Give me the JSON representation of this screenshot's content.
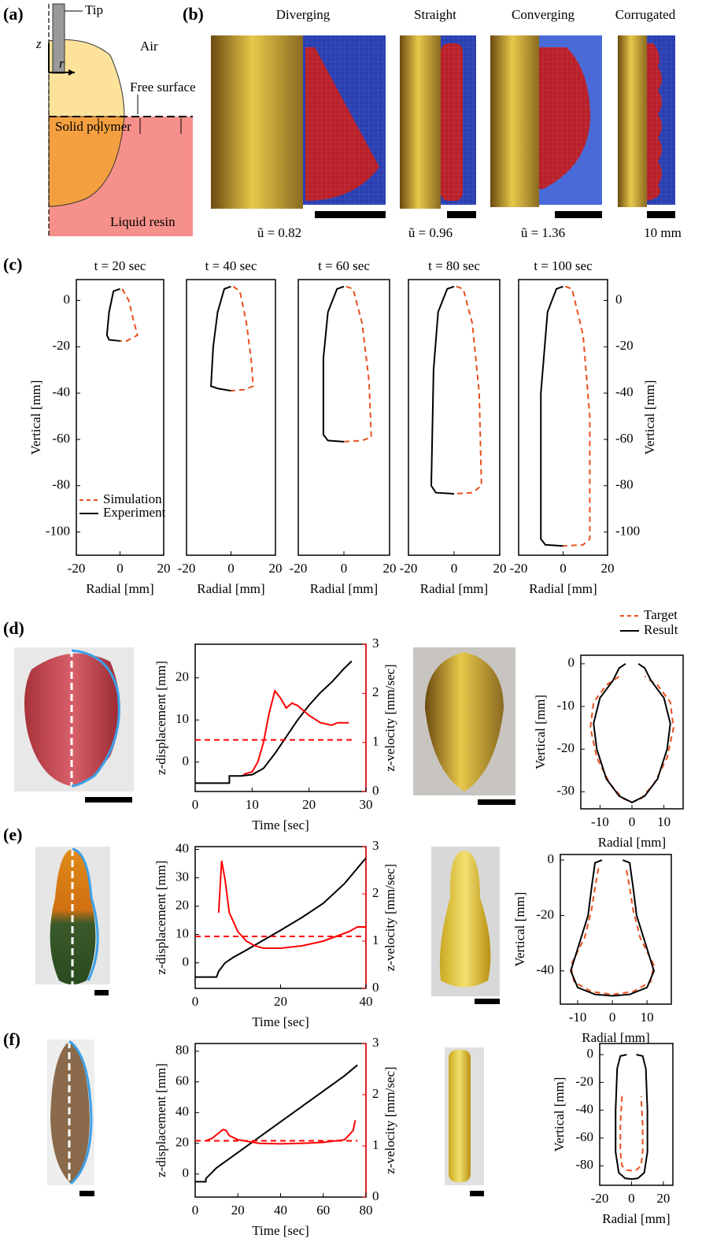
{
  "panel_labels": [
    "(a)",
    "(b)",
    "(c)",
    "(d)",
    "(e)",
    "(f)"
  ],
  "panel_a": {
    "tip": "Tip",
    "air": "Air",
    "z_axis": "z",
    "r_axis": "r",
    "free_surface": "Free surface",
    "solid": "Solid polymer",
    "liquid": "Liquid resin"
  },
  "panel_b": {
    "shapes": [
      {
        "title": "Diverging",
        "caption": "ũ = 0.82"
      },
      {
        "title": "Straight",
        "caption": "ũ = 0.96"
      },
      {
        "title": "Converging",
        "caption": "ũ = 1.36"
      },
      {
        "title": "Corrugated",
        "caption": "10 mm"
      }
    ]
  },
  "chart_data": [
    {
      "type": "line",
      "title": "t = 20 sec",
      "xlabel": "Radial [mm]",
      "ylabel": "Vertical [mm]",
      "xlim": [
        -20,
        20
      ],
      "ylim": [
        -110,
        9
      ],
      "xticks": [
        -20,
        0,
        20
      ],
      "yticks": [
        0,
        -20,
        -40,
        -60,
        -80,
        -100
      ],
      "legend": "lower left",
      "series": [
        {
          "name": "Simulation",
          "color": "#e8501e",
          "dash": true,
          "x": [
            1,
            4,
            6,
            8,
            3,
            0
          ],
          "values": [
            5,
            0,
            -8,
            -15,
            -17.5,
            -17.5
          ]
        },
        {
          "name": "Experiment",
          "color": "#000000",
          "dash": false,
          "x": [
            0,
            -3,
            -5,
            -6,
            -5,
            0
          ],
          "values": [
            5,
            4,
            -5,
            -15,
            -17,
            -17.5
          ]
        }
      ]
    },
    {
      "type": "line",
      "title": "t = 40 sec",
      "xlabel": "Radial [mm]",
      "xlim": [
        -20,
        20
      ],
      "ylim": [
        -110,
        9
      ],
      "xticks": [
        -20,
        0,
        20
      ],
      "series": [
        {
          "color": "#e8501e",
          "dash": true,
          "x": [
            1,
            4,
            7,
            9,
            10,
            6,
            0
          ],
          "values": [
            6,
            4,
            -10,
            -25,
            -37,
            -38.5,
            -39
          ]
        },
        {
          "color": "#000000",
          "dash": false,
          "x": [
            0,
            -3,
            -6,
            -8,
            -9,
            -6,
            0
          ],
          "values": [
            6,
            5,
            -5,
            -20,
            -37,
            -38,
            -39
          ]
        }
      ]
    },
    {
      "type": "line",
      "title": "t = 60 sec",
      "xlabel": "Radial [mm]",
      "xlim": [
        -20,
        20
      ],
      "ylim": [
        -110,
        9
      ],
      "xticks": [
        -20,
        0,
        20
      ],
      "series": [
        {
          "color": "#e8501e",
          "dash": true,
          "x": [
            1,
            4,
            8,
            11,
            12,
            8,
            0
          ],
          "values": [
            6,
            5,
            -10,
            -35,
            -59,
            -60.5,
            -61
          ]
        },
        {
          "color": "#000000",
          "dash": false,
          "x": [
            0,
            -3,
            -7,
            -9,
            -9,
            -7,
            0
          ],
          "values": [
            6,
            5,
            -5,
            -25,
            -58,
            -60.5,
            -61
          ]
        }
      ]
    },
    {
      "type": "line",
      "title": "t = 80 sec",
      "xlabel": "Radial [mm]",
      "xlim": [
        -20,
        20
      ],
      "ylim": [
        -110,
        9
      ],
      "xticks": [
        -20,
        0,
        20
      ],
      "series": [
        {
          "color": "#e8501e",
          "dash": true,
          "x": [
            1,
            4,
            8,
            11,
            12,
            8,
            0
          ],
          "values": [
            6,
            5,
            -10,
            -40,
            -80,
            -83,
            -83.5
          ]
        },
        {
          "color": "#000000",
          "dash": false,
          "x": [
            0,
            -3,
            -7,
            -9,
            -10,
            -8,
            0
          ],
          "values": [
            6,
            5,
            -5,
            -30,
            -80,
            -83,
            -83.5
          ]
        }
      ]
    },
    {
      "type": "line",
      "title": "t = 100 sec",
      "xlabel": "Radial [mm]",
      "ylabel": "Vertical [mm]",
      "y_axis_side": "right",
      "xlim": [
        -20,
        20
      ],
      "ylim": [
        -110,
        9
      ],
      "xticks": [
        -20,
        0,
        20
      ],
      "yticks": [
        0,
        -20,
        -40,
        -60,
        -80,
        -100
      ],
      "series": [
        {
          "color": "#e8501e",
          "dash": true,
          "x": [
            1,
            4,
            9,
            12,
            12,
            9,
            0
          ],
          "values": [
            6,
            5,
            -15,
            -50,
            -103,
            -105.5,
            -106
          ]
        },
        {
          "color": "#000000",
          "dash": false,
          "x": [
            0,
            -3,
            -7,
            -10,
            -10,
            -8,
            0
          ],
          "values": [
            6,
            5,
            -5,
            -40,
            -103,
            -105.5,
            -106
          ]
        }
      ]
    },
    {
      "type": "line",
      "xlabel": "Time [sec]",
      "ylabel": "z-displacement [mm]",
      "y2label": "z-velocity [mm/sec]",
      "y2color": "#ff0000",
      "xlim": [
        0,
        30
      ],
      "ylim": [
        -7,
        28
      ],
      "y2lim": [
        0,
        3
      ],
      "xticks": [
        0,
        10,
        20,
        30
      ],
      "yticks": [
        0,
        10,
        20
      ],
      "y2ticks": [
        0,
        1,
        2,
        3
      ],
      "series": [
        {
          "color": "#000000",
          "dash": false,
          "x": [
            0,
            6,
            6,
            8,
            10,
            12,
            14,
            16,
            18,
            20,
            22,
            24,
            26,
            27.5
          ],
          "values": [
            -5,
            -5,
            -3.3,
            -3.3,
            -3,
            -1.5,
            2,
            6,
            10,
            13.5,
            16.5,
            19,
            22,
            24
          ]
        },
        {
          "color": "#ff0000",
          "dash": false,
          "axis": "y2",
          "x": [
            8.5,
            10,
            11,
            12,
            13,
            14,
            15,
            16,
            17,
            18,
            20,
            22,
            24,
            25,
            27
          ],
          "values": [
            0.35,
            0.4,
            0.6,
            1,
            1.6,
            2.05,
            1.9,
            1.7,
            1.8,
            1.75,
            1.55,
            1.4,
            1.35,
            1.4,
            1.4
          ]
        },
        {
          "color": "#ff0000",
          "dash": true,
          "axis": "y2",
          "x": [
            0,
            27.5
          ],
          "values": [
            1.05,
            1.05
          ]
        }
      ]
    },
    {
      "type": "line",
      "xlabel": "Radial [mm]",
      "ylabel": "Vertical [mm]",
      "xlim": [
        -16,
        16
      ],
      "ylim": [
        -34,
        2
      ],
      "xticks": [
        -10,
        0,
        10
      ],
      "yticks": [
        0,
        -10,
        -20,
        -30
      ],
      "legend": "above right",
      "series": [
        {
          "name": "Target",
          "color": "#e8501e",
          "dash": true,
          "x": [
            -4,
            -8,
            -12,
            -13,
            -11,
            -7,
            -3,
            0,
            3,
            7,
            11,
            13,
            12,
            8,
            4
          ],
          "values": [
            -3,
            -5,
            -9,
            -15,
            -22,
            -28,
            -31.5,
            -32.5,
            -31.5,
            -28,
            -22,
            -15,
            -9,
            -5,
            -3
          ]
        },
        {
          "name": "Result",
          "color": "#000000",
          "dash": false,
          "x": [
            -2,
            -4,
            -6,
            -10,
            -12,
            -11,
            -8,
            -4,
            0,
            4,
            8,
            11,
            12,
            10,
            6,
            4,
            2
          ],
          "values": [
            0,
            -1,
            -4,
            -8,
            -14,
            -20,
            -27,
            -31,
            -32.5,
            -31,
            -27,
            -20,
            -14,
            -8,
            -4,
            -1,
            0
          ]
        }
      ]
    },
    {
      "type": "line",
      "xlabel": "Time [sec]",
      "ylabel": "z-displacement [mm]",
      "y2label": "z-velocity [mm/sec]",
      "y2color": "#ff0000",
      "xlim": [
        0,
        40
      ],
      "ylim": [
        -9,
        41
      ],
      "y2lim": [
        0,
        3
      ],
      "xticks": [
        0,
        20,
        40
      ],
      "yticks": [
        0,
        10,
        20,
        30,
        40
      ],
      "y2ticks": [
        0,
        1,
        2,
        3
      ],
      "series": [
        {
          "color": "#000000",
          "dash": false,
          "x": [
            0,
            5,
            5.5,
            7,
            9,
            12,
            16,
            20,
            25,
            30,
            35,
            40
          ],
          "values": [
            -5,
            -5,
            -3,
            0,
            2,
            4.5,
            8,
            11.5,
            16,
            21,
            28,
            37
          ]
        },
        {
          "color": "#ff0000",
          "dash": false,
          "axis": "y2",
          "x": [
            5.5,
            6.2,
            7,
            8,
            10,
            12,
            14,
            16,
            20,
            25,
            30,
            33,
            36,
            38,
            40
          ],
          "values": [
            1.6,
            2.7,
            2.3,
            1.6,
            1.2,
            1,
            0.9,
            0.85,
            0.85,
            0.9,
            1,
            1.1,
            1.2,
            1.3,
            1.3
          ]
        },
        {
          "color": "#ff0000",
          "dash": true,
          "axis": "y2",
          "x": [
            0,
            40
          ],
          "values": [
            1.1,
            1.1
          ]
        }
      ]
    },
    {
      "type": "line",
      "xlabel": "Radial [mm]",
      "ylabel": "Vertical [mm]",
      "xlim": [
        -15,
        17
      ],
      "ylim": [
        -52,
        2
      ],
      "xticks": [
        -10,
        0,
        10
      ],
      "yticks": [
        0,
        -20,
        -40
      ],
      "series": [
        {
          "color": "#e8501e",
          "dash": true,
          "x": [
            -4,
            -5,
            -6,
            -8,
            -12,
            -11,
            -6,
            0,
            6,
            11,
            12,
            8,
            6,
            5,
            4
          ],
          "values": [
            -3,
            -10,
            -18,
            -28,
            -38,
            -44,
            -47.5,
            -48.5,
            -47.5,
            -44,
            -38,
            -28,
            -18,
            -10,
            -3
          ]
        },
        {
          "color": "#000000",
          "dash": false,
          "x": [
            -3,
            -5,
            -6,
            -7,
            -10,
            -12,
            -10,
            -5,
            0,
            5,
            10,
            12,
            10,
            7,
            6,
            5,
            3
          ],
          "values": [
            0,
            -1,
            -10,
            -20,
            -32,
            -40,
            -46,
            -48.5,
            -49,
            -48.5,
            -46,
            -40,
            -32,
            -20,
            -10,
            -1,
            0
          ]
        }
      ]
    },
    {
      "type": "line",
      "xlabel": "Time [sec]",
      "ylabel": "z-displacement [mm]",
      "y2label": "z-velocity [mm/sec]",
      "y2color": "#ff0000",
      "xlim": [
        0,
        80
      ],
      "ylim": [
        -15,
        85
      ],
      "y2lim": [
        0,
        3
      ],
      "xticks": [
        0,
        20,
        40,
        60,
        80
      ],
      "yticks": [
        0,
        20,
        40,
        60,
        80
      ],
      "y2ticks": [
        0,
        1,
        2,
        3
      ],
      "series": [
        {
          "color": "#000000",
          "dash": false,
          "x": [
            0,
            5,
            5,
            10,
            20,
            30,
            40,
            50,
            60,
            70,
            76
          ],
          "values": [
            -5,
            -5,
            -3,
            4,
            14,
            24,
            34,
            44,
            54,
            64,
            71
          ]
        },
        {
          "color": "#ff0000",
          "dash": false,
          "axis": "y2",
          "x": [
            5,
            8,
            11,
            13,
            14.5,
            16,
            20,
            30,
            40,
            50,
            60,
            70,
            74,
            75
          ],
          "values": [
            1.1,
            1.15,
            1.25,
            1.32,
            1.3,
            1.2,
            1.12,
            1.05,
            1.04,
            1.05,
            1.07,
            1.12,
            1.3,
            1.5
          ]
        },
        {
          "color": "#ff0000",
          "dash": true,
          "axis": "y2",
          "x": [
            0,
            76
          ],
          "values": [
            1.1,
            1.1
          ]
        }
      ]
    },
    {
      "type": "line",
      "xlabel": "Radial [mm]",
      "ylabel": "Vertical [mm]",
      "xlim": [
        -20,
        26
      ],
      "ylim": [
        -94,
        8
      ],
      "xticks": [
        -20,
        0,
        20
      ],
      "yticks": [
        0,
        -20,
        -40,
        -60,
        -80
      ],
      "series": [
        {
          "color": "#e8501e",
          "dash": true,
          "x": [
            -6,
            -7,
            -7,
            -6,
            -3,
            0,
            3,
            6,
            7,
            7,
            6
          ],
          "values": [
            -30,
            -50,
            -70,
            -80,
            -83,
            -83.5,
            -83,
            -80,
            -70,
            -50,
            -30
          ]
        },
        {
          "color": "#000000",
          "dash": false,
          "x": [
            -3,
            -7,
            -9,
            -10,
            -10,
            -8,
            -4,
            0,
            4,
            8,
            10,
            10,
            9,
            7,
            3
          ],
          "values": [
            0,
            -1,
            -10,
            -40,
            -70,
            -85,
            -89,
            -89.5,
            -89,
            -85,
            -70,
            -40,
            -10,
            -1,
            0
          ]
        }
      ]
    }
  ]
}
